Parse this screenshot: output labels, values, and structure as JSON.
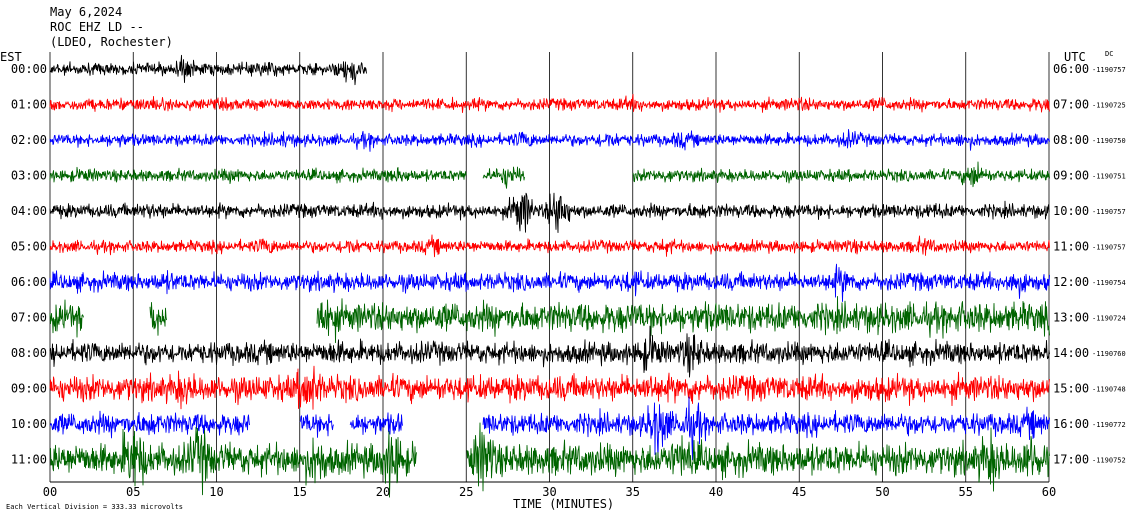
{
  "header": {
    "date": "May 6,2024",
    "station": "ROC EHZ LD --",
    "network": "(LDEO, Rochester)"
  },
  "labels": {
    "left_zone": "EST",
    "right_zone": "UTC",
    "dc": "DC",
    "x_title": "TIME (MINUTES)",
    "scale_note": "Each Vertical Division = 333.33 microvolts"
  },
  "colors": {
    "black": "#000000",
    "red": "#ff0000",
    "blue": "#0000ff",
    "green": "#006400",
    "grid": "#000000"
  },
  "chart_data": {
    "type": "line",
    "title": "ROC EHZ LD --",
    "xlabel": "TIME (MINUTES)",
    "xlim": [
      0,
      60
    ],
    "x_ticks": [
      "00",
      "05",
      "10",
      "15",
      "20",
      "25",
      "30",
      "35",
      "40",
      "45",
      "50",
      "55",
      "60"
    ],
    "grid": true,
    "series": [
      {
        "est": "00:00",
        "utc": "06:00",
        "dc": "-1190757",
        "color": "black",
        "end_minute": 19,
        "amplitude": 6,
        "bursts": [
          [
            3.5,
            3
          ],
          [
            8,
            14
          ],
          [
            13,
            10
          ],
          [
            18,
            18
          ]
        ]
      },
      {
        "est": "01:00",
        "utc": "07:00",
        "dc": "-1190725",
        "color": "red",
        "end_minute": 60,
        "amplitude": 6,
        "bursts": [
          [
            6,
            9
          ],
          [
            35,
            9
          ],
          [
            45,
            8
          ],
          [
            50,
            8
          ],
          [
            59.5,
            8
          ]
        ]
      },
      {
        "est": "02:00",
        "utc": "08:00",
        "dc": "-1190750",
        "color": "blue",
        "end_minute": 60,
        "amplitude": 6,
        "bursts": [
          [
            4,
            8
          ],
          [
            14,
            9
          ],
          [
            19,
            9
          ],
          [
            28.5,
            10
          ],
          [
            33.5,
            10
          ],
          [
            38,
            10
          ],
          [
            48,
            10
          ],
          [
            55,
            9
          ]
        ]
      },
      {
        "est": "03:00",
        "utc": "09:00",
        "dc": "-1190751",
        "color": "green",
        "end_minute": 60,
        "amplitude": 6,
        "gaps": [
          [
            25,
            26
          ],
          [
            28.5,
            35
          ]
        ],
        "bursts": [
          [
            2,
            8
          ],
          [
            11,
            8
          ],
          [
            21,
            9
          ],
          [
            27.5,
            14
          ],
          [
            37,
            8
          ],
          [
            55.5,
            16
          ]
        ]
      },
      {
        "est": "04:00",
        "utc": "10:00",
        "dc": "-1190757",
        "color": "black",
        "end_minute": 60,
        "amplitude": 7,
        "bursts": [
          [
            6,
            9
          ],
          [
            20,
            9
          ],
          [
            28.3,
            28
          ],
          [
            30.5,
            28
          ],
          [
            39,
            9
          ],
          [
            53,
            9
          ]
        ]
      },
      {
        "est": "05:00",
        "utc": "11:00",
        "dc": "-1190757",
        "color": "red",
        "end_minute": 60,
        "amplitude": 6,
        "bursts": [
          [
            13,
            10
          ],
          [
            18,
            10
          ],
          [
            23,
            10
          ],
          [
            37,
            9
          ],
          [
            48,
            8
          ],
          [
            52.5,
            10
          ]
        ]
      },
      {
        "est": "06:00",
        "utc": "12:00",
        "dc": "-1190754",
        "color": "blue",
        "end_minute": 60,
        "amplitude": 9,
        "bursts": [
          [
            7,
            12
          ],
          [
            35,
            14
          ],
          [
            47.5,
            18
          ],
          [
            58,
            16
          ]
        ]
      },
      {
        "est": "07:00",
        "utc": "13:00",
        "dc": "-1190724",
        "color": "green",
        "end_minute": 60,
        "amplitude": 15,
        "gaps": [
          [
            2,
            6
          ],
          [
            7,
            10.5
          ],
          [
            10.5,
            16
          ]
        ],
        "bursts": [
          [
            6,
            20
          ],
          [
            9,
            22
          ],
          [
            16.5,
            28
          ],
          [
            39,
            16
          ],
          [
            55,
            16
          ]
        ]
      },
      {
        "est": "08:00",
        "utc": "14:00",
        "dc": "-1190760",
        "color": "black",
        "end_minute": 60,
        "amplitude": 11,
        "bursts": [
          [
            17,
            14
          ],
          [
            36,
            24
          ],
          [
            38.5,
            24
          ],
          [
            47.5,
            12
          ]
        ]
      },
      {
        "est": "09:00",
        "utc": "15:00",
        "dc": "-1190748",
        "color": "red",
        "end_minute": 60,
        "amplitude": 13,
        "bursts": [
          [
            8,
            20
          ],
          [
            15.5,
            32
          ],
          [
            36,
            16
          ],
          [
            38.5,
            16
          ]
        ]
      },
      {
        "est": "10:00",
        "utc": "16:00",
        "dc": "-1190772",
        "color": "blue",
        "end_minute": 60,
        "amplitude": 11,
        "gaps": [
          [
            12,
            15
          ],
          [
            17,
            18
          ],
          [
            21.2,
            26
          ]
        ],
        "bursts": [
          [
            6,
            14
          ],
          [
            36.5,
            34
          ],
          [
            38.5,
            28
          ],
          [
            59,
            16
          ]
        ]
      },
      {
        "est": "11:00",
        "utc": "17:00",
        "dc": "-1190752",
        "color": "green",
        "end_minute": 60,
        "amplitude": 16,
        "gaps": [
          [
            22,
            25
          ]
        ],
        "bursts": [
          [
            5,
            40
          ],
          [
            9,
            34
          ],
          [
            16,
            30
          ],
          [
            20.5,
            38
          ],
          [
            26,
            40
          ],
          [
            38,
            26
          ],
          [
            56.5,
            32
          ],
          [
            59,
            28
          ]
        ]
      }
    ]
  }
}
